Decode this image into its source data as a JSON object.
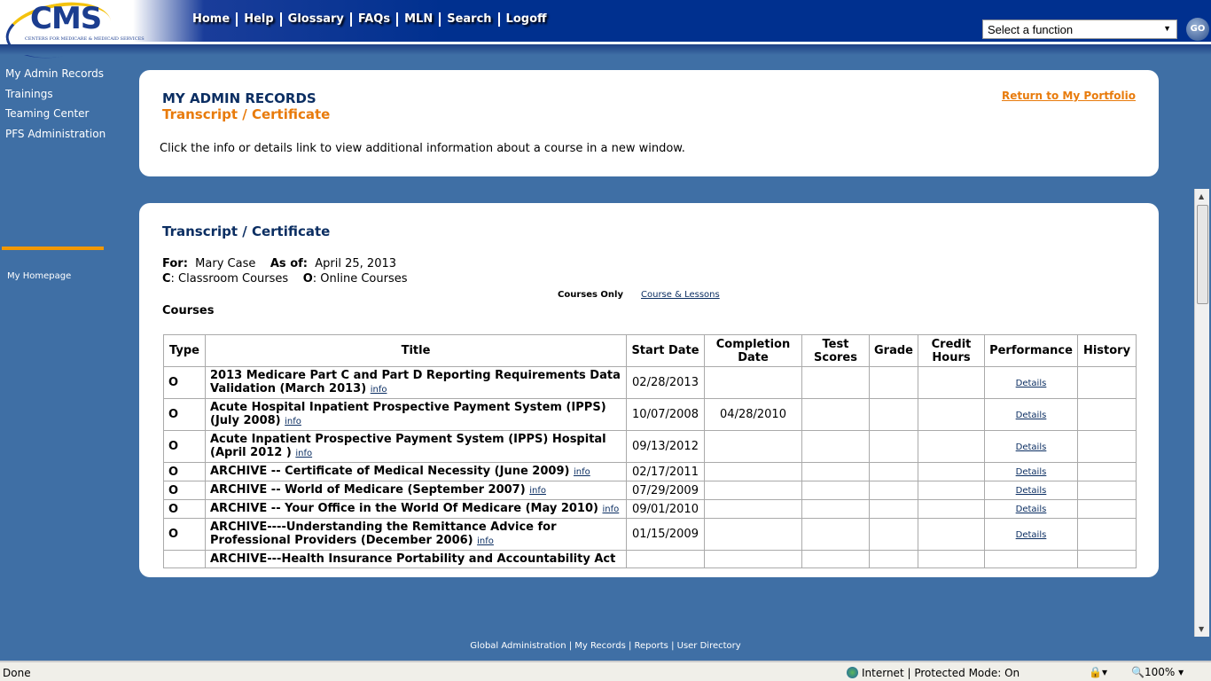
{
  "logo": {
    "text": "CMS",
    "subtitle": "CENTERS FOR MEDICARE & MEDICAID SERVICES"
  },
  "nav": [
    "Home",
    "Help",
    "Glossary",
    "FAQs",
    "MLN",
    "Search",
    "Logoff"
  ],
  "function_select": {
    "value": "Select a function",
    "go": "GO"
  },
  "sidebar": {
    "items": [
      "My Admin Records",
      "Trainings",
      "Teaming Center",
      "PFS Administration"
    ],
    "homepage": "My Homepage"
  },
  "header_card": {
    "title": "MY ADMIN RECORDS",
    "subtitle": "Transcript / Certificate",
    "return_link": "Return to My Portfolio",
    "message": "Click the info or details link to view additional information about a course in a new window."
  },
  "transcript": {
    "title": "Transcript / Certificate",
    "for_label": "For:",
    "for_value": "Mary Case",
    "asof_label": "As of:",
    "asof_value": "April 25, 2013",
    "c_label": "C",
    "c_value": ": Classroom Courses",
    "o_label": "O",
    "o_value": ": Online Courses",
    "courses_only": "Courses Only",
    "course_lessons": "Course & Lessons",
    "courses_heading": "Courses",
    "columns": [
      "Type",
      "Title",
      "Start Date",
      "Completion Date",
      "Test Scores",
      "Grade",
      "Credit Hours",
      "Performance",
      "History"
    ],
    "rows": [
      {
        "type": "O",
        "title": "2013 Medicare Part C and Part D Reporting Requirements Data Validation (March 2013)",
        "info": "info",
        "start": "02/28/2013",
        "completion": "",
        "perf": "Details"
      },
      {
        "type": "O",
        "title": "Acute Hospital Inpatient Prospective Payment System (IPPS) (July 2008)",
        "info": "info",
        "start": "10/07/2008",
        "completion": "04/28/2010",
        "perf": "Details"
      },
      {
        "type": "O",
        "title": "Acute Inpatient Prospective Payment System (IPPS) Hospital (April 2012 )",
        "info": "info",
        "start": "09/13/2012",
        "completion": "",
        "perf": "Details"
      },
      {
        "type": "O",
        "title": "ARCHIVE -- Certificate of Medical Necessity (June 2009)",
        "info": "info",
        "start": "02/17/2011",
        "completion": "",
        "perf": "Details"
      },
      {
        "type": "O",
        "title": "ARCHIVE -- World of Medicare (September 2007)",
        "info": "info",
        "start": "07/29/2009",
        "completion": "",
        "perf": "Details"
      },
      {
        "type": "O",
        "title": "ARCHIVE -- Your Office in the World Of Medicare (May 2010)",
        "info": "info",
        "start": "09/01/2010",
        "completion": "",
        "perf": "Details"
      },
      {
        "type": "O",
        "title": "ARCHIVE----Understanding the Remittance Advice for Professional Providers (December 2006)",
        "info": "info",
        "start": "01/15/2009",
        "completion": "",
        "perf": "Details"
      },
      {
        "type": "",
        "title": "ARCHIVE---Health Insurance Portability and Accountability Act",
        "info": "",
        "start": "",
        "completion": "",
        "perf": ""
      }
    ]
  },
  "footer": {
    "links": [
      "Global Administration",
      "My Records",
      "Reports",
      "User Directory"
    ]
  },
  "status": {
    "left": "Done",
    "zone": "Internet | Protected Mode: On",
    "zoom": "100%"
  }
}
